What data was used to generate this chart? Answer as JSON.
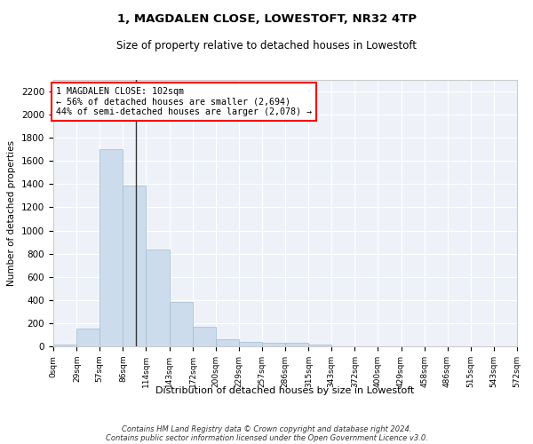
{
  "title1": "1, MAGDALEN CLOSE, LOWESTOFT, NR32 4TP",
  "title2": "Size of property relative to detached houses in Lowestoft",
  "xlabel": "Distribution of detached houses by size in Lowestoft",
  "ylabel": "Number of detached properties",
  "bar_color": "#ccdcec",
  "bar_edge_color": "#a0bcd0",
  "background_color": "#eef2f8",
  "annotation_text": "1 MAGDALEN CLOSE: 102sqm\n← 56% of detached houses are smaller (2,694)\n44% of semi-detached houses are larger (2,078) →",
  "footer1": "Contains HM Land Registry data © Crown copyright and database right 2024.",
  "footer2": "Contains public sector information licensed under the Open Government Licence v3.0.",
  "bin_edges": [
    0,
    29,
    57,
    86,
    114,
    143,
    172,
    200,
    229,
    257,
    286,
    315,
    343,
    372,
    400,
    429,
    458,
    486,
    515,
    543,
    572
  ],
  "bar_heights": [
    15,
    155,
    1705,
    1390,
    835,
    380,
    165,
    65,
    35,
    28,
    28,
    15,
    0,
    0,
    0,
    0,
    0,
    0,
    0,
    0
  ],
  "ylim": [
    0,
    2300
  ],
  "xlim": [
    0,
    572
  ],
  "property_size": 102,
  "tick_labels": [
    "0sqm",
    "29sqm",
    "57sqm",
    "86sqm",
    "114sqm",
    "143sqm",
    "172sqm",
    "200sqm",
    "229sqm",
    "257sqm",
    "286sqm",
    "315sqm",
    "343sqm",
    "372sqm",
    "400sqm",
    "429sqm",
    "458sqm",
    "486sqm",
    "515sqm",
    "543sqm",
    "572sqm"
  ],
  "yticks": [
    0,
    200,
    400,
    600,
    800,
    1000,
    1200,
    1400,
    1600,
    1800,
    2000,
    2200
  ]
}
